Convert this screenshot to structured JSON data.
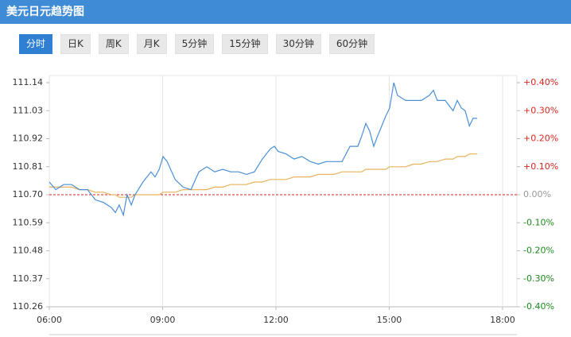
{
  "header": {
    "title": "美元日元趋势图"
  },
  "tabs": [
    {
      "label": "分时",
      "active": true
    },
    {
      "label": "日K",
      "active": false
    },
    {
      "label": "周K",
      "active": false
    },
    {
      "label": "月K",
      "active": false
    },
    {
      "label": "5分钟",
      "active": false
    },
    {
      "label": "15分钟",
      "active": false
    },
    {
      "label": "30分钟",
      "active": false
    },
    {
      "label": "60分钟",
      "active": false
    }
  ],
  "chart_data": {
    "type": "line",
    "x": [
      6.0,
      6.17,
      6.38,
      6.59,
      6.8,
      7.01,
      7.22,
      7.43,
      7.64,
      7.75,
      7.85,
      7.96,
      8.06,
      8.17,
      8.27,
      8.48,
      8.69,
      8.8,
      8.91,
      9.01,
      9.12,
      9.33,
      9.54,
      9.75,
      9.96,
      10.17,
      10.38,
      10.59,
      10.8,
      11.01,
      11.22,
      11.43,
      11.64,
      11.85,
      11.96,
      12.06,
      12.27,
      12.48,
      12.69,
      12.91,
      13.12,
      13.33,
      13.54,
      13.75,
      13.96,
      14.17,
      14.27,
      14.38,
      14.48,
      14.59,
      14.69,
      14.8,
      14.91,
      15.01,
      15.12,
      15.22,
      15.43,
      15.64,
      15.85,
      16.06,
      16.17,
      16.27,
      16.48,
      16.69,
      16.8,
      16.91,
      17.01,
      17.12,
      17.22,
      17.33
    ],
    "series": [
      {
        "color": "#4a8fd8",
        "values": [
          110.75,
          110.72,
          110.74,
          110.74,
          110.72,
          110.72,
          110.68,
          110.67,
          110.65,
          110.63,
          110.66,
          110.62,
          110.7,
          110.66,
          110.7,
          110.75,
          110.79,
          110.77,
          110.8,
          110.85,
          110.83,
          110.76,
          110.73,
          110.72,
          110.79,
          110.81,
          110.79,
          110.8,
          110.79,
          110.79,
          110.78,
          110.79,
          110.84,
          110.88,
          110.89,
          110.87,
          110.86,
          110.84,
          110.85,
          110.83,
          110.82,
          110.83,
          110.83,
          110.83,
          110.89,
          110.89,
          110.93,
          110.98,
          110.95,
          110.89,
          110.93,
          110.97,
          111.01,
          111.04,
          111.14,
          111.09,
          111.07,
          111.07,
          111.07,
          111.09,
          111.11,
          111.07,
          111.07,
          111.03,
          111.07,
          111.04,
          111.03,
          110.97,
          111.0,
          111.0
        ]
      },
      {
        "color": "#e8b35a",
        "values": [
          110.73,
          110.73,
          110.73,
          110.73,
          110.72,
          110.72,
          110.71,
          110.71,
          110.7,
          110.7,
          110.69,
          110.69,
          110.69,
          110.69,
          110.7,
          110.7,
          110.7,
          110.7,
          110.7,
          110.71,
          110.71,
          110.71,
          110.72,
          110.72,
          110.72,
          110.72,
          110.73,
          110.73,
          110.74,
          110.74,
          110.74,
          110.75,
          110.75,
          110.76,
          110.76,
          110.76,
          110.76,
          110.77,
          110.77,
          110.77,
          110.78,
          110.78,
          110.78,
          110.79,
          110.79,
          110.79,
          110.79,
          110.8,
          110.8,
          110.8,
          110.8,
          110.8,
          110.8,
          110.81,
          110.81,
          110.81,
          110.81,
          110.82,
          110.82,
          110.83,
          110.83,
          110.83,
          110.84,
          110.84,
          110.85,
          110.85,
          110.85,
          110.86,
          110.86,
          110.86
        ]
      }
    ],
    "xlim": [
      6,
      18.38
    ],
    "xticks": [
      {
        "value": 6,
        "label": "06:00"
      },
      {
        "value": 9,
        "label": "09:00"
      },
      {
        "value": 12,
        "label": "12:00"
      },
      {
        "value": 15,
        "label": "15:00"
      },
      {
        "value": 18,
        "label": "18:00"
      }
    ],
    "ylim": [
      110.26,
      111.14
    ],
    "yticks": [
      111.14,
      111.03,
      110.92,
      110.81,
      {
        "value": 110.7,
        "label": "110.70"
      },
      110.59,
      110.48,
      110.37,
      110.26
    ],
    "y2lim": [
      -0.4,
      0.4
    ],
    "y2ticks": [
      {
        "value": 0.4,
        "label": "+0.40%"
      },
      {
        "value": 0.3,
        "label": "+0.30%"
      },
      {
        "value": 0.2,
        "label": "+0.20%"
      },
      {
        "value": 0.1,
        "label": "+0.10%"
      },
      {
        "value": 0,
        "label": "0.00%"
      },
      {
        "value": -0.1,
        "label": "-0.10%"
      },
      {
        "value": -0.2,
        "label": "-0.20%"
      },
      {
        "value": -0.3,
        "label": "-0.30%"
      },
      {
        "value": -0.4,
        "label": "-0.40%"
      }
    ],
    "grid": true
  }
}
